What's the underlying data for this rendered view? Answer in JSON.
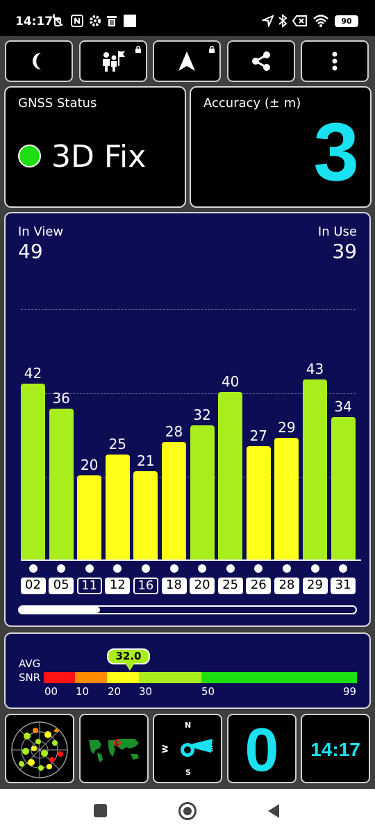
{
  "status_bar": {
    "time": "14:17",
    "battery": "90",
    "left_icons": [
      "mute-vibrate-icon",
      "nfc-icon",
      "settings-icon",
      "trash-icon",
      "square-notification-icon"
    ],
    "right_icons": [
      "location-arrow-icon",
      "bluetooth-icon",
      "x-box-icon",
      "wifi-icon",
      "battery-icon"
    ]
  },
  "toolbar": {
    "buttons": [
      {
        "icon": "moon-icon",
        "locked": false
      },
      {
        "icon": "people-flag-icon",
        "locked": true
      },
      {
        "icon": "navigation-arrow-icon",
        "locked": true
      },
      {
        "icon": "share-icon",
        "locked": false
      },
      {
        "icon": "more-vert-icon",
        "locked": false
      }
    ]
  },
  "gnss_status": {
    "title": "GNSS Status",
    "fix": "3D Fix",
    "fix_color": "#1dde12"
  },
  "accuracy": {
    "title": "Accuracy (± m)",
    "value": "3",
    "color": "#1ae1f0"
  },
  "satellites": {
    "in_view_label": "In View",
    "in_view": "49",
    "in_use_label": "In Use",
    "in_use": "39",
    "scroll_position": 0.24
  },
  "chart_data": {
    "type": "bar",
    "categories": [
      "02",
      "05",
      "11",
      "12",
      "16",
      "18",
      "20",
      "25",
      "26",
      "28",
      "29",
      "31"
    ],
    "values": [
      42,
      36,
      20,
      25,
      21,
      28,
      32,
      40,
      27,
      29,
      43,
      34
    ],
    "in_use": [
      true,
      true,
      false,
      true,
      false,
      true,
      true,
      true,
      true,
      true,
      true,
      true
    ],
    "ylim": [
      0,
      60
    ],
    "grid": true,
    "colors": {
      "strong": "#a8ee1c",
      "medium": "#ffff1a"
    }
  },
  "snr": {
    "label_top": "AVG",
    "label_bottom": "SNR",
    "average": "32.0",
    "ticks": [
      "00",
      "10",
      "20",
      "30",
      "50",
      "99"
    ],
    "segments": [
      {
        "color": "#ff1414"
      },
      {
        "color": "#ff8c00"
      },
      {
        "color": "#ffff1a"
      },
      {
        "color": "#a8ee1c"
      },
      {
        "color": "#1dde12"
      }
    ]
  },
  "tiles": {
    "compass": {
      "n": "N",
      "s": "S",
      "e": "E",
      "w": "W"
    },
    "speed_value": "0",
    "clock": "14:17"
  },
  "navbar": {
    "icons": [
      "recents-square-icon",
      "home-circle-icon",
      "back-triangle-icon"
    ]
  }
}
